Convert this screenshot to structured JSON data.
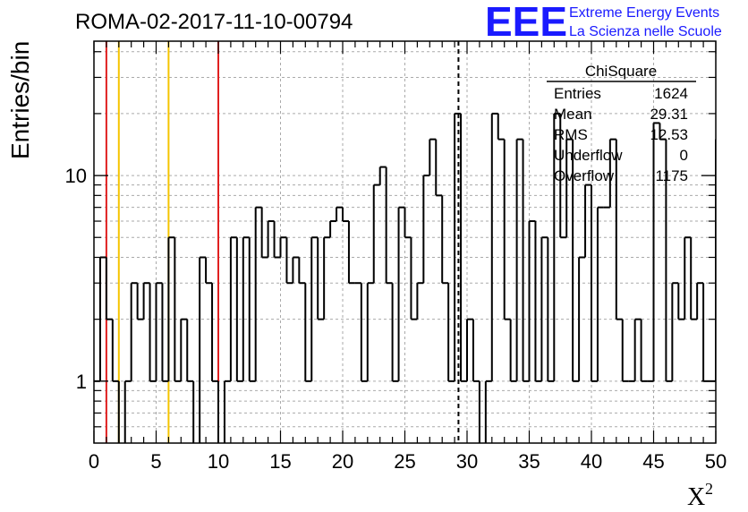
{
  "chart_data": {
    "type": "bar",
    "subtype": "histogram-step",
    "title": "ROMA-02-2017-11-10-00794",
    "xlabel": "X",
    "xlabel_superscript": "2",
    "ylabel": "Entries/bin",
    "yscale": "log",
    "xlim": [
      0,
      50
    ],
    "ylim": [
      0.5,
      45
    ],
    "grid": true,
    "bin_width": 0.5,
    "x_ticks": [
      0,
      5,
      10,
      15,
      20,
      25,
      30,
      35,
      40,
      45,
      50
    ],
    "x_tick_labels": [
      "0",
      "5",
      "10",
      "15",
      "20",
      "25",
      "30",
      "35",
      "40",
      "45",
      "50"
    ],
    "y_ticks": [
      1,
      10
    ],
    "y_tick_labels": [
      "1",
      "10"
    ],
    "values": [
      1,
      4,
      2,
      1,
      0,
      1,
      3,
      2,
      3,
      1,
      3,
      1,
      5,
      1,
      2,
      1,
      0,
      4,
      3,
      1,
      0,
      1,
      5,
      1,
      5,
      1,
      7,
      4,
      6,
      4,
      5,
      3,
      4,
      3,
      1,
      5,
      2,
      5,
      6,
      7,
      6,
      3,
      3,
      1,
      3,
      9,
      11,
      3,
      1,
      7,
      5,
      2,
      3,
      10,
      15,
      8,
      3,
      1,
      20,
      1,
      2,
      1,
      0,
      1,
      20,
      15,
      2,
      1,
      15,
      1,
      6,
      1,
      5,
      1,
      20,
      5,
      15,
      1,
      4,
      9,
      1,
      7,
      7,
      15,
      2,
      1,
      1,
      2,
      1,
      1,
      18,
      15,
      1,
      3,
      2,
      5,
      2,
      3,
      1,
      1,
      15
    ],
    "vertical_lines": [
      {
        "x": 1,
        "color": "#e02020",
        "style": "solid"
      },
      {
        "x": 2,
        "color": "#f5c400",
        "style": "solid"
      },
      {
        "x": 6,
        "color": "#f5c400",
        "style": "solid"
      },
      {
        "x": 10,
        "color": "#e02020",
        "style": "solid"
      },
      {
        "x": 29.31,
        "color": "#000000",
        "style": "dashed"
      }
    ],
    "stats_box": {
      "title": "ChiSquare",
      "rows": [
        {
          "label": "Entries",
          "value": "1624"
        },
        {
          "label": "Mean",
          "value": "29.31"
        },
        {
          "label": "RMS",
          "value": "12.53"
        },
        {
          "label": "Underflow",
          "value": "0"
        },
        {
          "label": "Overflow",
          "value": "1175"
        }
      ]
    }
  },
  "logo": {
    "mark": "EEE",
    "line1": "Extreme Energy Events",
    "line2": "La Scienza nelle Scuole",
    "color": "#1a1aff"
  }
}
